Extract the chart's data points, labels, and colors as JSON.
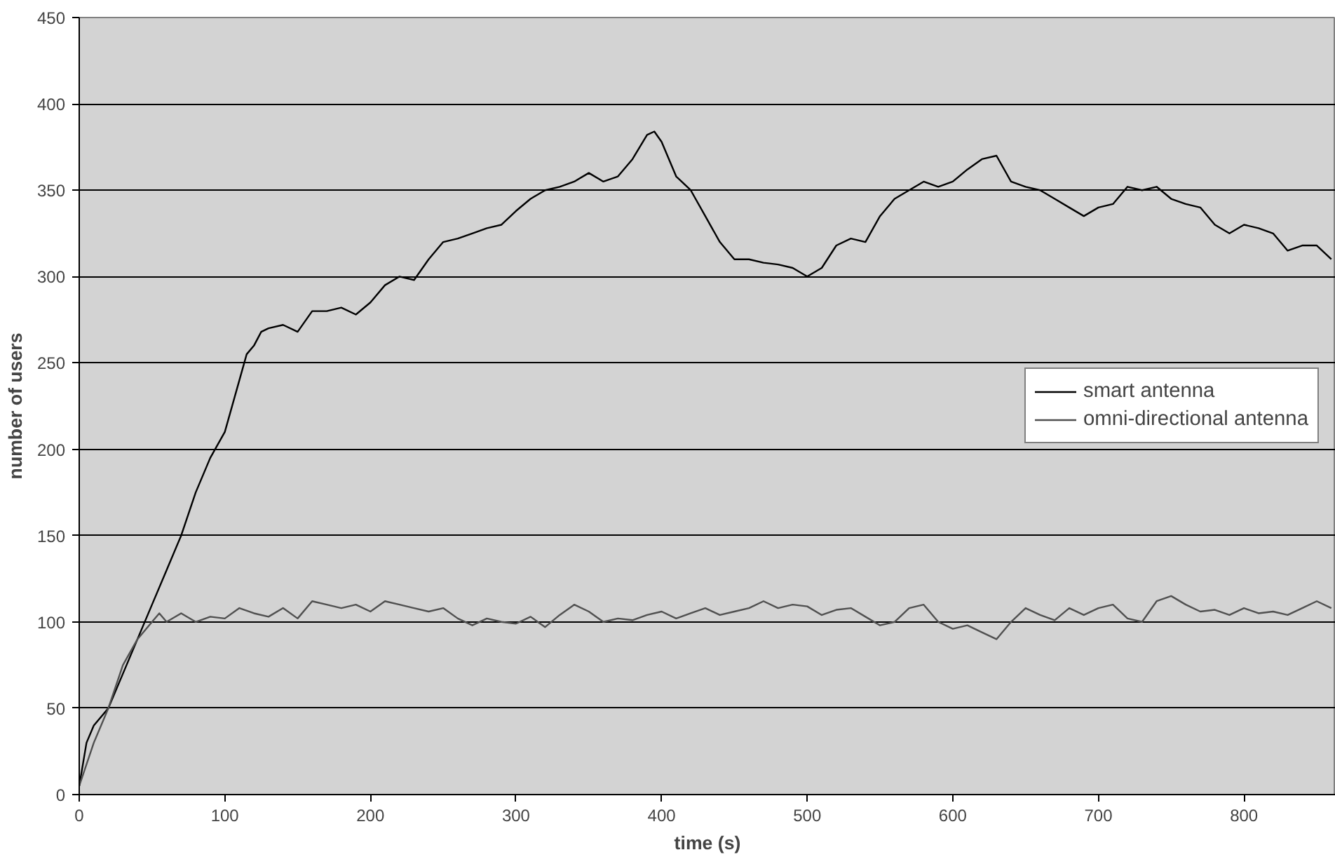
{
  "chart_data": {
    "type": "line",
    "xlabel": "time (s)",
    "ylabel": "number of users",
    "xlim": [
      0,
      863
    ],
    "xticks": [
      0,
      100,
      200,
      300,
      400,
      500,
      600,
      700,
      800
    ],
    "ylim": [
      0,
      450
    ],
    "yticks": [
      0,
      50,
      100,
      150,
      200,
      250,
      300,
      350,
      400,
      450
    ],
    "grid": "y",
    "legend": "center right",
    "line_style": "solid",
    "marker": "none",
    "series": [
      {
        "name": "smart antenna",
        "color": "#000000",
        "x": [
          0,
          5,
          10,
          20,
          30,
          40,
          50,
          60,
          70,
          80,
          90,
          100,
          110,
          115,
          120,
          125,
          130,
          140,
          150,
          160,
          170,
          180,
          190,
          200,
          210,
          220,
          230,
          240,
          250,
          260,
          270,
          280,
          290,
          300,
          310,
          320,
          330,
          340,
          350,
          360,
          370,
          380,
          390,
          395,
          400,
          410,
          420,
          430,
          440,
          450,
          460,
          470,
          480,
          490,
          500,
          510,
          520,
          530,
          540,
          550,
          560,
          570,
          580,
          590,
          600,
          610,
          620,
          630,
          640,
          650,
          660,
          670,
          680,
          690,
          700,
          710,
          720,
          730,
          740,
          750,
          760,
          770,
          780,
          790,
          800,
          810,
          820,
          830,
          840,
          850,
          860
        ],
        "values": [
          5,
          30,
          40,
          50,
          70,
          90,
          110,
          130,
          150,
          175,
          195,
          210,
          240,
          255,
          260,
          268,
          270,
          272,
          268,
          280,
          280,
          282,
          278,
          285,
          295,
          300,
          298,
          310,
          320,
          322,
          325,
          328,
          330,
          338,
          345,
          350,
          352,
          355,
          360,
          355,
          358,
          368,
          382,
          384,
          378,
          358,
          350,
          335,
          320,
          310,
          310,
          308,
          307,
          305,
          300,
          305,
          318,
          322,
          320,
          335,
          345,
          350,
          355,
          352,
          355,
          362,
          368,
          370,
          355,
          352,
          350,
          345,
          340,
          335,
          340,
          342,
          352,
          350,
          352,
          345,
          342,
          340,
          330,
          325,
          330,
          328,
          325,
          315,
          318,
          318,
          310
        ]
      },
      {
        "name": "omni-directional antenna",
        "color": "#505050",
        "x": [
          0,
          10,
          20,
          30,
          40,
          50,
          55,
          60,
          70,
          80,
          90,
          100,
          110,
          120,
          130,
          140,
          150,
          160,
          170,
          180,
          190,
          200,
          210,
          220,
          230,
          240,
          250,
          260,
          270,
          280,
          290,
          300,
          310,
          320,
          330,
          340,
          350,
          360,
          370,
          380,
          390,
          400,
          410,
          420,
          430,
          440,
          450,
          460,
          470,
          480,
          490,
          500,
          510,
          520,
          530,
          540,
          550,
          560,
          570,
          580,
          590,
          600,
          610,
          620,
          630,
          640,
          650,
          660,
          670,
          680,
          690,
          700,
          710,
          720,
          730,
          740,
          750,
          760,
          770,
          780,
          790,
          800,
          810,
          820,
          830,
          840,
          850,
          860
        ],
        "values": [
          5,
          30,
          50,
          75,
          90,
          100,
          105,
          100,
          105,
          100,
          103,
          102,
          108,
          105,
          103,
          108,
          102,
          112,
          110,
          108,
          110,
          106,
          112,
          110,
          108,
          106,
          108,
          102,
          98,
          102,
          100,
          99,
          103,
          97,
          104,
          110,
          106,
          100,
          102,
          101,
          104,
          106,
          102,
          105,
          108,
          104,
          106,
          108,
          112,
          108,
          110,
          109,
          104,
          107,
          108,
          103,
          98,
          100,
          108,
          110,
          100,
          96,
          98,
          94,
          90,
          100,
          108,
          104,
          101,
          108,
          104,
          108,
          110,
          102,
          100,
          112,
          115,
          110,
          106,
          107,
          104,
          108,
          105,
          106,
          104,
          108,
          112,
          108
        ]
      }
    ]
  }
}
